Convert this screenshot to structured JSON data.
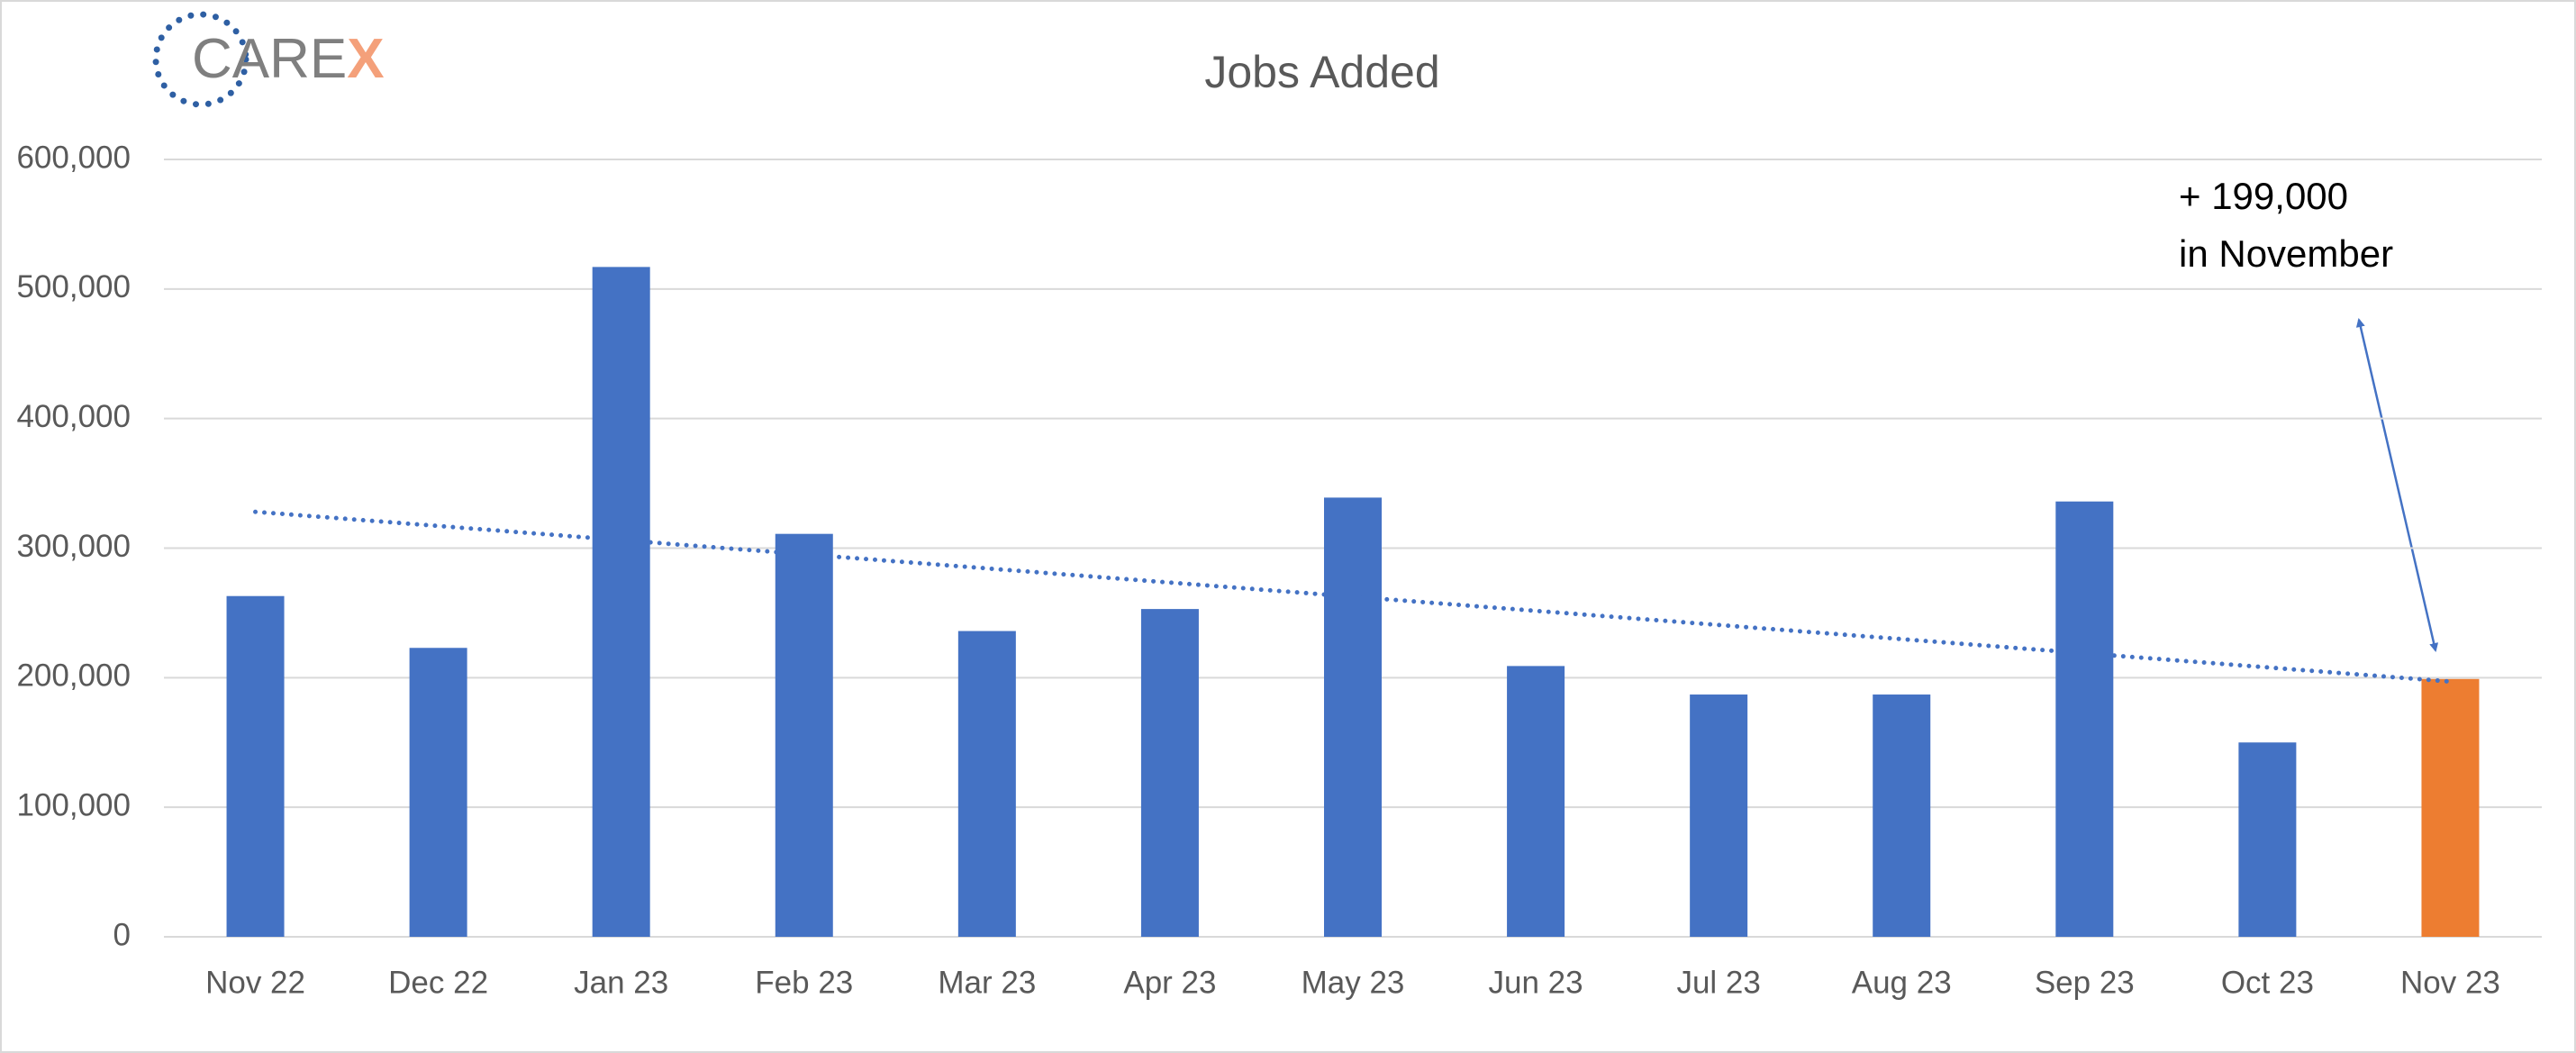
{
  "chart_data": {
    "type": "bar",
    "title": "Jobs Added",
    "logo": {
      "main": "CARE",
      "accent": "X"
    },
    "categories": [
      "Nov 22",
      "Dec 22",
      "Jan 23",
      "Feb 23",
      "Mar 23",
      "Apr 23",
      "May 23",
      "Jun 23",
      "Jul 23",
      "Aug 23",
      "Sep 23",
      "Oct 23",
      "Nov 23"
    ],
    "values": [
      263000,
      223000,
      517000,
      311000,
      236000,
      253000,
      339000,
      209000,
      187000,
      187000,
      336000,
      150000,
      199000
    ],
    "colors": [
      "#4472c4",
      "#4472c4",
      "#4472c4",
      "#4472c4",
      "#4472c4",
      "#4472c4",
      "#4472c4",
      "#4472c4",
      "#4472c4",
      "#4472c4",
      "#4472c4",
      "#4472c4",
      "#ed7d31"
    ],
    "trendline": {
      "values": [
        328000,
        197000
      ],
      "color": "#4472c4"
    },
    "annotation": [
      "+ 199,000",
      "in November"
    ],
    "ylim": [
      0,
      600000
    ],
    "yticks": [
      0,
      {
        "value": 100000,
        "label": "100,000"
      },
      {
        "value": 200000,
        "label": "200,000"
      },
      {
        "value": 300000,
        "label": "300,000"
      },
      {
        "value": 400000,
        "label": "400,000"
      },
      {
        "value": 500000,
        "label": "500,000"
      },
      {
        "value": 600000,
        "label": "600,000"
      }
    ],
    "grid": true
  }
}
